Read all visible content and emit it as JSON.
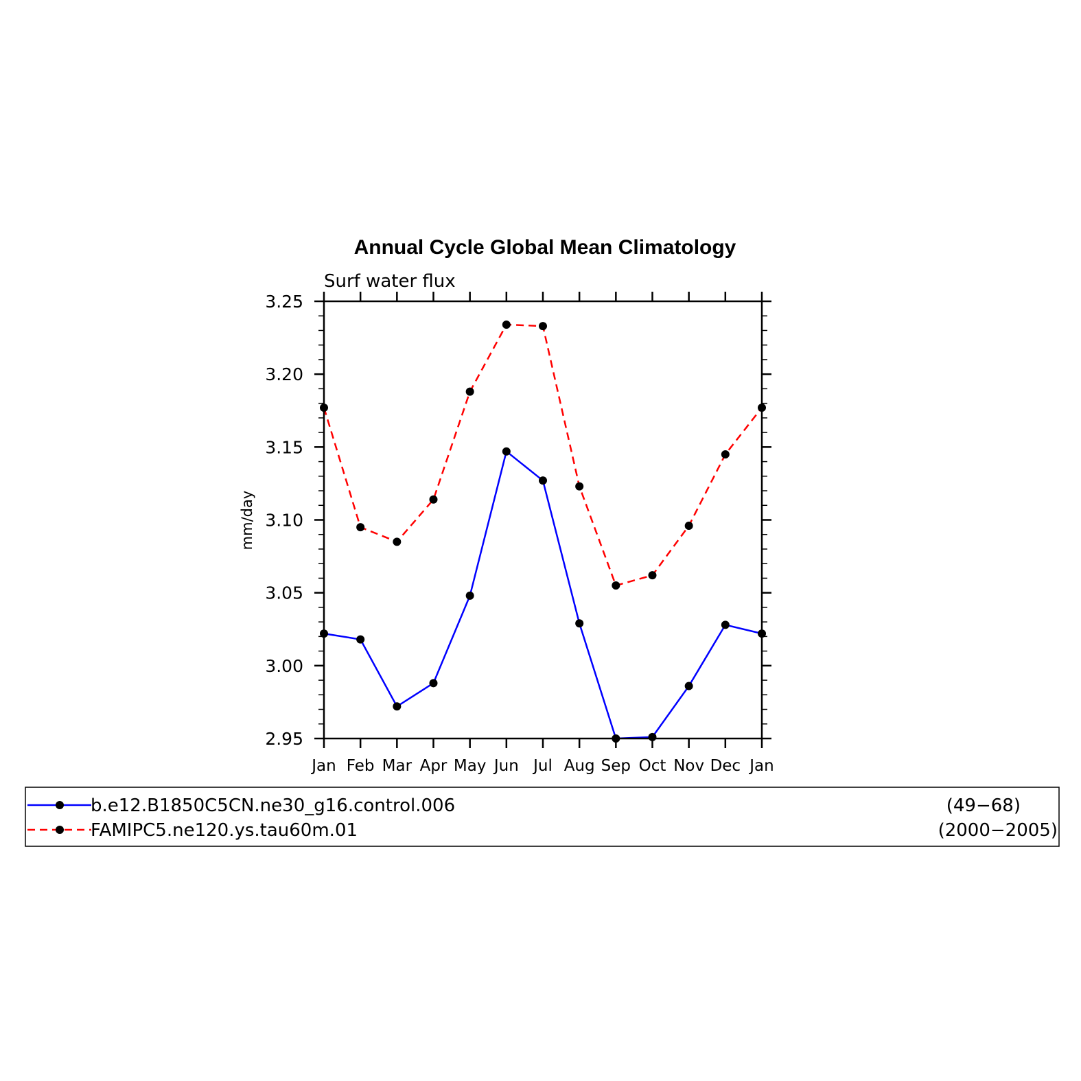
{
  "chart_data": {
    "type": "line",
    "title": "Annual Cycle Global Mean Climatology",
    "subtitle": "Surf water flux",
    "xlabel": "",
    "ylabel": "mm/day",
    "categories": [
      "Jan",
      "Feb",
      "Mar",
      "Apr",
      "May",
      "Jun",
      "Jul",
      "Aug",
      "Sep",
      "Oct",
      "Nov",
      "Dec",
      "Jan"
    ],
    "ylim": [
      2.95,
      3.25
    ],
    "yticks": [
      "2.95",
      "3.00",
      "3.05",
      "3.10",
      "3.15",
      "3.20",
      "3.25"
    ],
    "grid": false,
    "legend_position": "bottom",
    "series": [
      {
        "name": "b.e12.B1850C5CN.ne30_g16.control.006",
        "years": "(49−68)",
        "color": "#0000ff",
        "dashed": false,
        "values": [
          3.022,
          3.018,
          2.972,
          2.988,
          3.048,
          3.147,
          3.127,
          3.029,
          2.95,
          2.951,
          2.986,
          3.028,
          3.022
        ]
      },
      {
        "name": "FAMIPC5.ne120.ys.tau60m.01",
        "years": "(2000−2005)",
        "color": "#ff0000",
        "dashed": true,
        "values": [
          3.177,
          3.095,
          3.085,
          3.114,
          3.188,
          3.234,
          3.233,
          3.123,
          3.055,
          3.062,
          3.096,
          3.145,
          3.177
        ]
      }
    ]
  }
}
